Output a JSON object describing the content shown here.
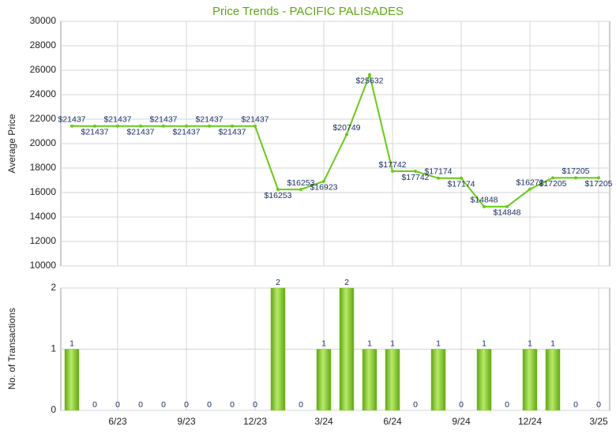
{
  "chart_data": [
    {
      "type": "line",
      "title": "Price Trends - PACIFIC PALISADES",
      "y_label": "Average Price",
      "series": [
        {
          "name": "Average Price",
          "color": "#66cc11",
          "values": [
            21437,
            21437,
            21437,
            21437,
            21437,
            21437,
            21437,
            21437,
            21437,
            16253,
            16253,
            16923,
            20749,
            25632,
            17742,
            17742,
            17174,
            17174,
            14848,
            14848,
            16272,
            17205,
            17205,
            17205
          ],
          "value_labels": [
            "$21437",
            "$21437",
            "$21437",
            "$21437",
            "$21437",
            "$21437",
            "$21437",
            "$21437",
            "$21437",
            "$16253",
            "$16253",
            "$16923",
            "$20749",
            "$25632",
            "$17742",
            "$17742",
            "$17174",
            "$17174",
            "$14848",
            "$14848",
            "$16272",
            "$17205",
            "$17205",
            "$17205"
          ]
        }
      ],
      "ylim": [
        10000,
        30000
      ],
      "yticks": [
        10000,
        12000,
        14000,
        16000,
        18000,
        20000,
        22000,
        24000,
        26000,
        28000,
        30000
      ],
      "grid": true
    },
    {
      "type": "bar",
      "y_label": "No. of Transactions",
      "categories": [
        null,
        null,
        "6/23",
        null,
        null,
        "9/23",
        null,
        null,
        "12/23",
        null,
        null,
        "3/24",
        null,
        null,
        "6/24",
        null,
        null,
        "9/24",
        null,
        null,
        "12/24",
        null,
        null,
        "3/25"
      ],
      "values": [
        1,
        0,
        0,
        0,
        0,
        0,
        0,
        0,
        0,
        2,
        0,
        1,
        2,
        1,
        1,
        0,
        1,
        0,
        1,
        0,
        1,
        1,
        0,
        0
      ],
      "color": "#7cc520",
      "ylim": [
        0,
        2
      ],
      "yticks": [
        0,
        1,
        2
      ],
      "grid": true
    }
  ]
}
